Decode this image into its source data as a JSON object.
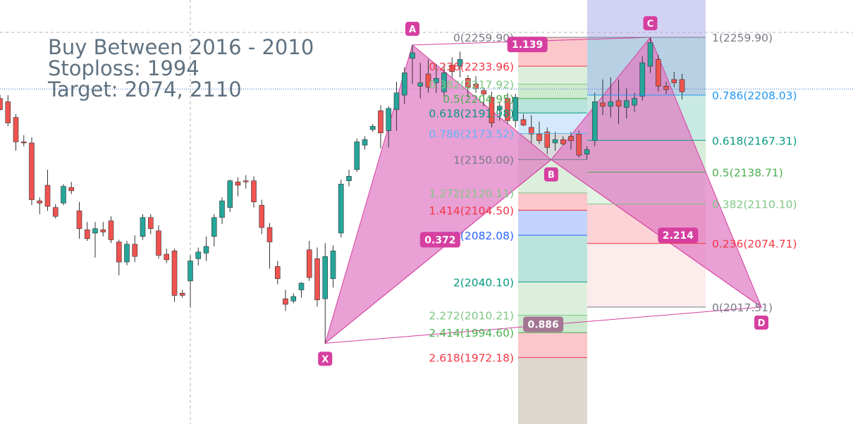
{
  "notes": {
    "line1": "Buy Between 2016 - 2010",
    "line2": "Stoploss: 1994",
    "line3": "Target: 2074, 2110"
  },
  "colors": {
    "up": "#26a69a",
    "down": "#ef5350",
    "pattern": "#d63fa0",
    "pattern_fill": "#e17bc4"
  },
  "chart_data": {
    "type": "candlestick",
    "title": "",
    "xlabel": "",
    "ylabel": "",
    "ylim": [
      1937,
      2290
    ],
    "candles": [
      {
        "i": 0,
        "o": 2205.0,
        "h": 2208.5,
        "l": 2194.0,
        "c": 2195.0
      },
      {
        "i": 1,
        "o": 2202.0,
        "h": 2208.0,
        "l": 2180.0,
        "c": 2183.0
      },
      {
        "i": 2,
        "o": 2188.0,
        "h": 2191.0,
        "l": 2158.0,
        "c": 2166.0
      },
      {
        "i": 3,
        "o": 2166.0,
        "h": 2172.0,
        "l": 2162.0,
        "c": 2165.0
      },
      {
        "i": 4,
        "o": 2165.0,
        "h": 2170.0,
        "l": 2109.0,
        "c": 2114.0
      },
      {
        "i": 5,
        "o": 2113.0,
        "h": 2116.0,
        "l": 2101.0,
        "c": 2111.0
      },
      {
        "i": 6,
        "o": 2127.0,
        "h": 2141.0,
        "l": 2104.0,
        "c": 2108.0
      },
      {
        "i": 7,
        "o": 2107.0,
        "h": 2110.0,
        "l": 2097.0,
        "c": 2099.0
      },
      {
        "i": 8,
        "o": 2111.0,
        "h": 2128.0,
        "l": 2109.0,
        "c": 2126.0
      },
      {
        "i": 9,
        "o": 2125.0,
        "h": 2130.0,
        "l": 2119.0,
        "c": 2122.0
      },
      {
        "i": 10,
        "o": 2104.0,
        "h": 2112.0,
        "l": 2079.0,
        "c": 2088.0
      },
      {
        "i": 11,
        "o": 2087.0,
        "h": 2094.0,
        "l": 2077.0,
        "c": 2079.0
      },
      {
        "i": 12,
        "o": 2084.0,
        "h": 2094.0,
        "l": 2062.0,
        "c": 2088.0
      },
      {
        "i": 13,
        "o": 2087.0,
        "h": 2094.0,
        "l": 2081.0,
        "c": 2085.0
      },
      {
        "i": 14,
        "o": 2095.0,
        "h": 2099.0,
        "l": 2075.0,
        "c": 2078.0
      },
      {
        "i": 15,
        "o": 2076.0,
        "h": 2078.0,
        "l": 2046.0,
        "c": 2058.0
      },
      {
        "i": 16,
        "o": 2058.0,
        "h": 2077.0,
        "l": 2055.0,
        "c": 2074.0
      },
      {
        "i": 17,
        "o": 2074.0,
        "h": 2082.0,
        "l": 2058.0,
        "c": 2063.0
      },
      {
        "i": 18,
        "o": 2081.0,
        "h": 2101.0,
        "l": 2078.0,
        "c": 2098.0
      },
      {
        "i": 19,
        "o": 2098.0,
        "h": 2101.0,
        "l": 2083.0,
        "c": 2088.0
      },
      {
        "i": 20,
        "o": 2086.0,
        "h": 2091.0,
        "l": 2061.0,
        "c": 2064.0
      },
      {
        "i": 21,
        "o": 2065.0,
        "h": 2070.0,
        "l": 2057.0,
        "c": 2060.0
      },
      {
        "i": 22,
        "o": 2068.0,
        "h": 2070.0,
        "l": 2022.0,
        "c": 2028.0
      },
      {
        "i": 23,
        "o": 2030.0,
        "h": 2033.0,
        "l": 2026.0,
        "c": 2028.0
      },
      {
        "i": 24,
        "o": 2041.0,
        "h": 2064.0,
        "l": 2017.0,
        "c": 2059.0
      },
      {
        "i": 25,
        "o": 2061.0,
        "h": 2071.0,
        "l": 2055.0,
        "c": 2067.0
      },
      {
        "i": 26,
        "o": 2066.0,
        "h": 2081.0,
        "l": 2059.0,
        "c": 2072.0
      },
      {
        "i": 27,
        "o": 2081.0,
        "h": 2101.0,
        "l": 2072.0,
        "c": 2098.0
      },
      {
        "i": 28,
        "o": 2098.0,
        "h": 2116.0,
        "l": 2092.0,
        "c": 2113.0
      },
      {
        "i": 29,
        "o": 2107.0,
        "h": 2132.0,
        "l": 2103.0,
        "c": 2131.0
      },
      {
        "i": 30,
        "o": 2130.0,
        "h": 2134.0,
        "l": 2117.0,
        "c": 2127.0
      },
      {
        "i": 31,
        "o": 2131.0,
        "h": 2136.0,
        "l": 2124.0,
        "c": 2130.0
      },
      {
        "i": 32,
        "o": 2131.0,
        "h": 2135.0,
        "l": 2107.0,
        "c": 2112.0
      },
      {
        "i": 33,
        "o": 2109.0,
        "h": 2114.0,
        "l": 2083.0,
        "c": 2089.0
      },
      {
        "i": 34,
        "o": 2089.0,
        "h": 2093.0,
        "l": 2052.0,
        "c": 2076.0
      },
      {
        "i": 35,
        "o": 2054.0,
        "h": 2059.0,
        "l": 2038.0,
        "c": 2043.0
      },
      {
        "i": 36,
        "o": 2025.0,
        "h": 2033.0,
        "l": 2014.0,
        "c": 2020.0
      },
      {
        "i": 37,
        "o": 2023.0,
        "h": 2030.0,
        "l": 2021.0,
        "c": 2027.0
      },
      {
        "i": 38,
        "o": 2033.0,
        "h": 2040.0,
        "l": 2026.0,
        "c": 2039.0
      },
      {
        "i": 39,
        "o": 2069.0,
        "h": 2077.0,
        "l": 2041.0,
        "c": 2044.0
      },
      {
        "i": 40,
        "o": 2061.0,
        "h": 2071.0,
        "l": 2018.0,
        "c": 2024.0
      },
      {
        "i": 41,
        "o": 2025.0,
        "h": 2075.0,
        "l": 1985.0,
        "c": 2063.0
      },
      {
        "i": 42,
        "o": 2043.0,
        "h": 2073.0,
        "l": 2035.0,
        "c": 2068.0
      },
      {
        "i": 43,
        "o": 2084.0,
        "h": 2132.0,
        "l": 2080.0,
        "c": 2128.0
      },
      {
        "i": 44,
        "o": 2131.0,
        "h": 2141.0,
        "l": 2126.0,
        "c": 2135.0
      },
      {
        "i": 45,
        "o": 2141.0,
        "h": 2169.0,
        "l": 2139.0,
        "c": 2166.0
      },
      {
        "i": 46,
        "o": 2163.0,
        "h": 2171.0,
        "l": 2159.0,
        "c": 2168.0
      },
      {
        "i": 47,
        "o": 2177.0,
        "h": 2182.0,
        "l": 2175.0,
        "c": 2180.0
      },
      {
        "i": 48,
        "o": 2194.0,
        "h": 2199.0,
        "l": 2160.0,
        "c": 2174.0
      },
      {
        "i": 49,
        "o": 2176.0,
        "h": 2198.0,
        "l": 2161.0,
        "c": 2196.0
      },
      {
        "i": 50,
        "o": 2195.0,
        "h": 2220.0,
        "l": 2176.0,
        "c": 2210.0
      },
      {
        "i": 51,
        "o": 2208.0,
        "h": 2233.0,
        "l": 2200.0,
        "c": 2228.0
      },
      {
        "i": 52,
        "o": 2241.0,
        "h": 2253.0,
        "l": 2218.0,
        "c": 2246.0
      },
      {
        "i": 53,
        "o": 2216.0,
        "h": 2237.0,
        "l": 2205.0,
        "c": 2219.0
      },
      {
        "i": 54,
        "o": 2227.0,
        "h": 2240.0,
        "l": 2210.0,
        "c": 2215.0
      },
      {
        "i": 55,
        "o": 2219.0,
        "h": 2236.0,
        "l": 2210.0,
        "c": 2223.0
      },
      {
        "i": 56,
        "o": 2211.0,
        "h": 2236.0,
        "l": 2207.0,
        "c": 2228.0
      },
      {
        "i": 57,
        "o": 2235.0,
        "h": 2242.0,
        "l": 2224.0,
        "c": 2229.0
      },
      {
        "i": 58,
        "o": 2234.0,
        "h": 2247.0,
        "l": 2224.0,
        "c": 2240.0
      },
      {
        "i": 59,
        "o": 2223.0,
        "h": 2226.0,
        "l": 2206.0,
        "c": 2215.0
      },
      {
        "i": 60,
        "o": 2218.0,
        "h": 2225.0,
        "l": 2210.0,
        "c": 2214.0
      },
      {
        "i": 61,
        "o": 2212.0,
        "h": 2215.0,
        "l": 2198.0,
        "c": 2209.0
      },
      {
        "i": 62,
        "o": 2206.0,
        "h": 2211.0,
        "l": 2179.0,
        "c": 2183.0
      },
      {
        "i": 63,
        "o": 2195.0,
        "h": 2201.0,
        "l": 2185.0,
        "c": 2198.0
      },
      {
        "i": 64,
        "o": 2205.0,
        "h": 2210.0,
        "l": 2182.0,
        "c": 2185.0
      },
      {
        "i": 65,
        "o": 2185.0,
        "h": 2209.0,
        "l": 2179.0,
        "c": 2206.0
      },
      {
        "i": 66,
        "o": 2186.0,
        "h": 2191.0,
        "l": 2180.0,
        "c": 2181.0
      },
      {
        "i": 67,
        "o": 2179.0,
        "h": 2190.0,
        "l": 2165.0,
        "c": 2173.0
      },
      {
        "i": 68,
        "o": 2173.0,
        "h": 2184.0,
        "l": 2164.0,
        "c": 2167.0
      },
      {
        "i": 69,
        "o": 2175.0,
        "h": 2179.0,
        "l": 2155.0,
        "c": 2161.0
      },
      {
        "i": 70,
        "o": 2165.0,
        "h": 2175.0,
        "l": 2158.0,
        "c": 2168.0
      },
      {
        "i": 71,
        "o": 2168.0,
        "h": 2171.0,
        "l": 2163.0,
        "c": 2164.0
      },
      {
        "i": 72,
        "o": 2171.0,
        "h": 2175.0,
        "l": 2159.0,
        "c": 2167.0
      },
      {
        "i": 73,
        "o": 2173.0,
        "h": 2176.0,
        "l": 2152.0,
        "c": 2154.0
      },
      {
        "i": 74,
        "o": 2155.0,
        "h": 2162.0,
        "l": 2150.0,
        "c": 2159.0
      },
      {
        "i": 75,
        "o": 2167.0,
        "h": 2210.0,
        "l": 2162.0,
        "c": 2202.0
      },
      {
        "i": 76,
        "o": 2201.0,
        "h": 2222.0,
        "l": 2190.0,
        "c": 2198.0
      },
      {
        "i": 77,
        "o": 2198.0,
        "h": 2224.0,
        "l": 2188.0,
        "c": 2202.0
      },
      {
        "i": 78,
        "o": 2203.0,
        "h": 2222.0,
        "l": 2182.0,
        "c": 2198.0
      },
      {
        "i": 79,
        "o": 2197.0,
        "h": 2214.0,
        "l": 2187.0,
        "c": 2203.0
      },
      {
        "i": 80,
        "o": 2199.0,
        "h": 2210.0,
        "l": 2193.0,
        "c": 2205.0
      },
      {
        "i": 81,
        "o": 2207.0,
        "h": 2243.0,
        "l": 2203.0,
        "c": 2237.0
      },
      {
        "i": 82,
        "o": 2234.0,
        "h": 2259.9,
        "l": 2228.0,
        "c": 2255.0
      },
      {
        "i": 83,
        "o": 2240.0,
        "h": 2244.0,
        "l": 2211.0,
        "c": 2216.0
      },
      {
        "i": 84,
        "o": 2216.0,
        "h": 2220.0,
        "l": 2209.0,
        "c": 2213.0
      },
      {
        "i": 85,
        "o": 2222.0,
        "h": 2229.0,
        "l": 2215.0,
        "c": 2219.0
      },
      {
        "i": 86,
        "o": 2222.0,
        "h": 2227.0,
        "l": 2204.0,
        "c": 2211.0
      }
    ],
    "current_price": 2213.5,
    "pattern": {
      "points": [
        {
          "name": "X",
          "i": 41,
          "price": 1985.0
        },
        {
          "name": "A",
          "i": 52,
          "price": 2253.0
        },
        {
          "name": "B",
          "i": 69.5,
          "price": 2150.0
        },
        {
          "name": "C",
          "i": 82,
          "price": 2259.9
        },
        {
          "name": "D",
          "i": 96,
          "price": 2017.51
        }
      ],
      "ratios": [
        {
          "label": "0.372",
          "i": 55.5,
          "price": 2078.0
        },
        {
          "label": "1.139",
          "i": 66.5,
          "price": 2253.5
        },
        {
          "label": "2.214",
          "i": 85.5,
          "price": 2082.0
        },
        {
          "label": "0.886",
          "i": 68.5,
          "price": 2002.0
        }
      ]
    },
    "retracement_left": {
      "anchor_high": 2259.9,
      "anchor_low": 2150.0,
      "levels": [
        {
          "label": "0(2259.90)",
          "price": 2259.9,
          "color": "#787b86"
        },
        {
          "label": "0.236(2233.96)",
          "price": 2233.96,
          "color": "#f23645"
        },
        {
          "label": "0.382(2217.92)",
          "price": 2217.92,
          "color": "#81c784"
        },
        {
          "label": "0.5(2204.95)",
          "price": 2204.95,
          "color": "#4caf50"
        },
        {
          "label": "0.618(2191.98)",
          "price": 2191.98,
          "color": "#089981"
        },
        {
          "label": "0.786(2173.52)",
          "price": 2173.52,
          "color": "#64b5f6"
        },
        {
          "label": "1(2150.00)",
          "price": 2150.0,
          "color": "#787b86"
        },
        {
          "label": "1.272(2120.11)",
          "price": 2120.11,
          "color": "#81c784"
        },
        {
          "label": "1.414(2104.50)",
          "price": 2104.5,
          "color": "#f23645"
        },
        {
          "label": "1.618(2082.08)",
          "price": 2082.08,
          "color": "#2962ff"
        },
        {
          "label": "2(2040.10)",
          "price": 2040.1,
          "color": "#089981"
        },
        {
          "label": "2.272(2010.21)",
          "price": 2010.21,
          "color": "#81c784"
        },
        {
          "label": "2.414(1994.60)",
          "price": 1994.6,
          "color": "#4caf50"
        },
        {
          "label": "2.618(1972.18)",
          "price": 1972.18,
          "color": "#f23645"
        }
      ]
    },
    "retracement_right": {
      "anchor_high": 2259.9,
      "anchor_low": 2017.51,
      "levels": [
        {
          "label": "1(2259.90)",
          "price": 2259.9,
          "color": "#787b86"
        },
        {
          "label": "0.786(2208.03)",
          "price": 2208.03,
          "color": "#2196f3"
        },
        {
          "label": "0.618(2167.31)",
          "price": 2167.31,
          "color": "#089981"
        },
        {
          "label": "0.5(2138.71)",
          "price": 2138.71,
          "color": "#4caf50"
        },
        {
          "label": "0.382(2110.10)",
          "price": 2110.1,
          "color": "#81c784"
        },
        {
          "label": "0.236(2074.71)",
          "price": 2074.71,
          "color": "#f23645"
        },
        {
          "label": "0(2017.51)",
          "price": 2017.51,
          "color": "#787b86"
        }
      ]
    }
  }
}
